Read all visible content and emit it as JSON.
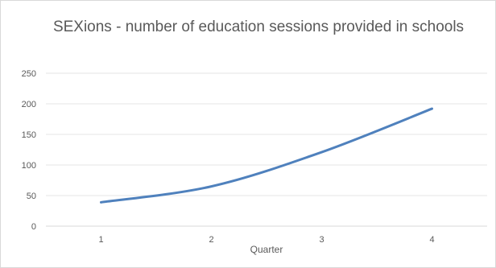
{
  "chart_data": {
    "type": "line",
    "title": "SEXions - number of education sessions provided in schools",
    "xlabel": "Quarter",
    "ylabel": "",
    "categories": [
      "1",
      "2",
      "3",
      "4"
    ],
    "series": [
      {
        "values": [
          39,
          65,
          121,
          192
        ],
        "color": "#4f81bd"
      }
    ],
    "ylim": [
      0,
      250
    ],
    "yticks": [
      0,
      50,
      100,
      150,
      200,
      250
    ],
    "grid": true,
    "legend": "none"
  }
}
